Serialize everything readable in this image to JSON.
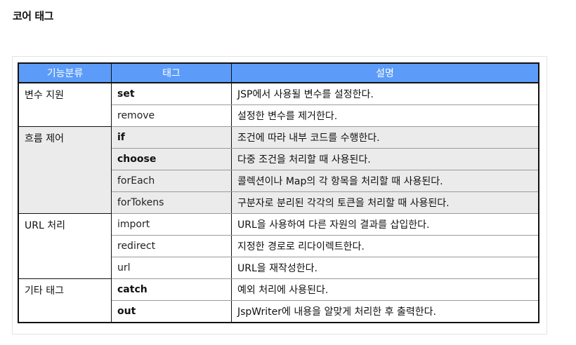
{
  "page_title": "코어 태그",
  "table": {
    "headers": [
      "기능분류",
      "태그",
      "설명"
    ],
    "groups": [
      {
        "category": "변수 지원",
        "shaded": false,
        "rows": [
          {
            "tag": "set",
            "bold": true,
            "desc": "JSP에서 사용될 변수를 설정한다."
          },
          {
            "tag": "remove",
            "bold": false,
            "desc": "설정한 변수를 제거한다."
          }
        ]
      },
      {
        "category": "흐름 제어",
        "shaded": true,
        "rows": [
          {
            "tag": "if",
            "bold": true,
            "desc": "조건에 따라 내부 코드를 수행한다."
          },
          {
            "tag": "choose",
            "bold": true,
            "desc": "다중 조건을 처리할 때 사용된다."
          },
          {
            "tag": "forEach",
            "bold": false,
            "desc": "콜렉션이나 Map의 각 항목을 처리할 때 사용된다."
          },
          {
            "tag": "forTokens",
            "bold": false,
            "desc": "구분자로 분리된 각각의 토큰을 처리할 때 사용된다."
          }
        ]
      },
      {
        "category": "URL 처리",
        "shaded": false,
        "rows": [
          {
            "tag": "import",
            "bold": false,
            "desc": "URL을 사용하여 다른 자원의 결과를 삽입한다."
          },
          {
            "tag": "redirect",
            "bold": false,
            "desc": "지정한 경로로 리다이렉트한다."
          },
          {
            "tag": "url",
            "bold": false,
            "desc": "URL을 재작성한다."
          }
        ]
      },
      {
        "category": "기타 태그",
        "shaded": false,
        "rows": [
          {
            "tag": "catch",
            "bold": true,
            "desc": "예외 처리에 사용된다."
          },
          {
            "tag": "out",
            "bold": true,
            "desc": "JspWriter에 내용을 알맞게 처리한 후 출력한다."
          }
        ]
      }
    ]
  }
}
